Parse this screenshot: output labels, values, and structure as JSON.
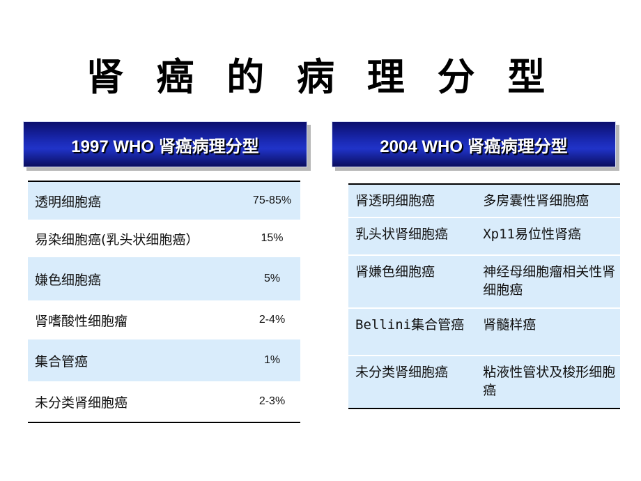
{
  "title": "肾 癌 的 病 理 分 型",
  "left": {
    "header": "1997 WHO 肾癌病理分型",
    "rows": [
      {
        "name": "透明细胞癌",
        "value": "75-85%"
      },
      {
        "name": "易染细胞癌(乳头状细胞癌）",
        "value": "15%"
      },
      {
        "name": "嫌色细胞癌",
        "value": "5%"
      },
      {
        "name": "肾嗜酸性细胞瘤",
        "value": "2-4%"
      },
      {
        "name": "集合管癌",
        "value": "1%"
      },
      {
        "name": "未分类肾细胞癌",
        "value": "2-3%"
      }
    ]
  },
  "right": {
    "header": "2004 WHO 肾癌病理分型",
    "rows": [
      {
        "a": "肾透明细胞癌",
        "b": "多房囊性肾细胞癌"
      },
      {
        "a": "乳头状肾细胞癌",
        "b": "Xp11易位性肾癌"
      },
      {
        "a": "肾嫌色细胞癌",
        "b": "神经母细胞瘤相关性肾细胞癌"
      },
      {
        "a": "Bellini集合管癌",
        "b": "肾髓样癌"
      },
      {
        "a": "未分类肾细胞癌",
        "b": "粘液性管状及梭形细胞癌"
      }
    ]
  }
}
